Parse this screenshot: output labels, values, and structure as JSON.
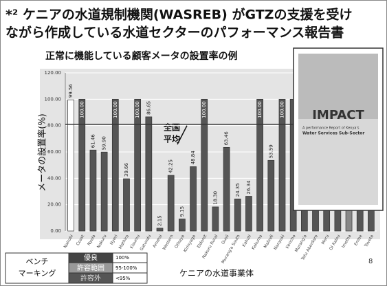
{
  "header": {
    "title_line1": "*² ケニアの水道規制機関(WASREB) がGTZの支援を受け",
    "title_line2": "ながら作成している水道セクターのパフォーマンス報告書"
  },
  "chart_data": {
    "type": "bar",
    "title": "正常に機能している顧客メータの設置率の例",
    "y_label": "メータの設置率(%)",
    "x_label": "ケニアの水道事業体",
    "annotation_line1": "全国",
    "annotation_line2": "平均",
    "average": 81,
    "categories": [
      "Nairobi",
      "Coast",
      "Nyala",
      "Nakuru",
      "Nyeri",
      "Mathira",
      "Kisumu",
      "Gatundu",
      "Amatsi",
      "Western",
      "Othaya",
      "Kirinyaga",
      "Eldoret",
      "Nakuru Rural",
      "Gusii",
      "Murang'a South",
      "Kahuti",
      "Kakuma",
      "Malindi",
      "Nanyuki",
      "Kericho",
      "Murang'a",
      "Tetu Aberdare",
      "Meru",
      "Ol Kalou",
      "Imetha",
      "Embe",
      "Taveta"
    ],
    "values": [
      99.56,
      100,
      61.46,
      59.9,
      100,
      39.66,
      100,
      86.65,
      2.15,
      42.25,
      9.15,
      48.84,
      100,
      18.3,
      63.46,
      24.35,
      26.34,
      100,
      53.59,
      100,
      100,
      100,
      100,
      100,
      38,
      16,
      18.92,
      100
    ],
    "value_labels": [
      "99.56",
      "100.00",
      "61.46",
      "59.90",
      "100.00",
      "39.66",
      "100.00",
      "86.65",
      "2.15",
      "42.25",
      "9.15",
      "48.84",
      "100.00",
      "18.30",
      "63.46",
      "24.35",
      "26.34",
      "100.00",
      "53.59",
      "100.00",
      null,
      null,
      null,
      null,
      "38",
      null,
      "18.92",
      null
    ],
    "bar_colors": [
      "#ffffff",
      "#555555",
      "#555555",
      "#555555",
      "#555555",
      "#555555",
      "#555555",
      "#555555",
      "#555555",
      "#555555",
      "#555555",
      "#555555",
      "#555555",
      "#555555",
      "#555555",
      "#555555",
      "#555555",
      "#555555",
      "#555555",
      "#555555",
      "#555555",
      "#555555",
      "#555555",
      "#555555",
      "#555555",
      "#888888",
      "#555555",
      "#555555"
    ],
    "ylim": [
      0,
      120
    ],
    "yticks": [
      {
        "value": 0,
        "label": "0.00"
      },
      {
        "value": 20,
        "label": "20.00"
      },
      {
        "value": 40,
        "label": "40.00"
      },
      {
        "value": 60,
        "label": "60.00"
      },
      {
        "value": 80,
        "label": "80.00"
      },
      {
        "value": 100,
        "label": "100.00"
      },
      {
        "value": 120,
        "label": "120.00"
      }
    ],
    "grid": true
  },
  "legend": {
    "title_line1": "ベンチ",
    "title_line2": "マーキング",
    "items": [
      {
        "label": "優良",
        "range": "100%"
      },
      {
        "label": "許容範囲",
        "range": "95-100%"
      },
      {
        "label": "許容外",
        "range": "<95%"
      }
    ]
  },
  "inset": {
    "title": "IMPACT",
    "subtitle_line1": "A performance Report of Kenya's",
    "subtitle_line2": "Water Services Sub-Sector"
  },
  "footer": {
    "page": "8"
  }
}
